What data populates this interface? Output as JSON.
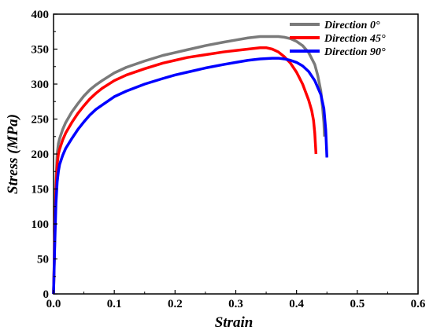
{
  "chart_data": {
    "type": "line",
    "title": "",
    "xlabel": "Strain",
    "ylabel": "Stress (MPa)",
    "xlim": [
      0.0,
      0.6
    ],
    "ylim": [
      0,
      400
    ],
    "xticks": [
      "0.0",
      "0.1",
      "0.2",
      "0.3",
      "0.4",
      "0.5",
      "0.6"
    ],
    "yticks": [
      "0",
      "50",
      "100",
      "150",
      "200",
      "250",
      "300",
      "350",
      "400"
    ],
    "grid": false,
    "legend_position": "top-right",
    "series": [
      {
        "name": "Direction 0°",
        "color": "#7a7a7a",
        "x": [
          0.0,
          0.002,
          0.004,
          0.006,
          0.008,
          0.01,
          0.015,
          0.02,
          0.03,
          0.04,
          0.05,
          0.06,
          0.07,
          0.08,
          0.1,
          0.12,
          0.15,
          0.18,
          0.2,
          0.22,
          0.25,
          0.28,
          0.3,
          0.32,
          0.34,
          0.36,
          0.37,
          0.38,
          0.39,
          0.4,
          0.41,
          0.42,
          0.43,
          0.435,
          0.44,
          0.443,
          0.445,
          0.446
        ],
        "y": [
          0,
          80,
          160,
          200,
          215,
          222,
          235,
          245,
          260,
          272,
          283,
          292,
          299,
          305,
          316,
          324,
          333,
          341,
          345,
          349,
          355,
          360,
          363,
          366,
          368,
          368,
          368,
          367,
          365,
          361,
          355,
          345,
          328,
          312,
          290,
          265,
          245,
          225
        ]
      },
      {
        "name": "Direction 45°",
        "color": "#ff0000",
        "x": [
          0.0,
          0.002,
          0.004,
          0.006,
          0.008,
          0.01,
          0.015,
          0.02,
          0.03,
          0.04,
          0.05,
          0.06,
          0.07,
          0.08,
          0.1,
          0.12,
          0.15,
          0.18,
          0.2,
          0.22,
          0.25,
          0.28,
          0.3,
          0.32,
          0.34,
          0.35,
          0.36,
          0.37,
          0.38,
          0.39,
          0.4,
          0.41,
          0.42,
          0.425,
          0.428,
          0.43,
          0.431,
          0.432
        ],
        "y": [
          0,
          80,
          150,
          185,
          200,
          207,
          220,
          230,
          245,
          258,
          269,
          279,
          287,
          294,
          305,
          313,
          322,
          330,
          334,
          338,
          342,
          346,
          348,
          350,
          352,
          352,
          350,
          346,
          339,
          330,
          317,
          300,
          277,
          262,
          248,
          230,
          215,
          200
        ]
      },
      {
        "name": "Direction 90°",
        "color": "#0000ff",
        "x": [
          0.0,
          0.002,
          0.004,
          0.006,
          0.008,
          0.01,
          0.015,
          0.02,
          0.03,
          0.04,
          0.05,
          0.06,
          0.07,
          0.08,
          0.1,
          0.12,
          0.15,
          0.18,
          0.2,
          0.22,
          0.25,
          0.28,
          0.3,
          0.32,
          0.34,
          0.36,
          0.37,
          0.38,
          0.39,
          0.4,
          0.41,
          0.42,
          0.43,
          0.44,
          0.445,
          0.448,
          0.45
        ],
        "y": [
          0,
          70,
          130,
          160,
          175,
          185,
          198,
          208,
          222,
          235,
          246,
          256,
          264,
          270,
          282,
          290,
          300,
          308,
          313,
          317,
          323,
          328,
          331,
          334,
          336,
          337,
          337,
          336,
          334,
          331,
          326,
          318,
          305,
          285,
          265,
          235,
          195
        ]
      }
    ]
  }
}
